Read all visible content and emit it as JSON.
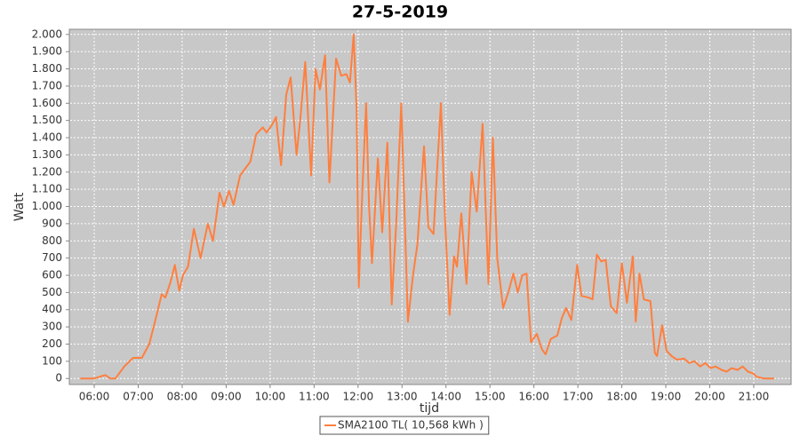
{
  "chart_data": {
    "type": "line",
    "title": "27-5-2019",
    "x_label": "tijd",
    "y_label": "Watt",
    "x": [
      "05:41",
      "06:00",
      "06:15",
      "06:22",
      "06:29",
      "06:41",
      "06:53",
      "07:05",
      "07:15",
      "07:24",
      "07:32",
      "07:37",
      "07:44",
      "07:50",
      "07:56",
      "08:01",
      "08:08",
      "08:16",
      "08:25",
      "08:35",
      "08:42",
      "08:51",
      "08:57",
      "09:04",
      "09:10",
      "09:19",
      "09:26",
      "09:33",
      "09:41",
      "09:50",
      "09:55",
      "10:02",
      "10:08",
      "10:15",
      "10:22",
      "10:28",
      "10:36",
      "10:41",
      "10:48",
      "10:56",
      "11:02",
      "11:08",
      "11:15",
      "11:21",
      "11:30",
      "11:37",
      "11:44",
      "11:49",
      "11:54",
      "11:58",
      "12:01",
      "12:06",
      "12:11",
      "12:15",
      "12:19",
      "12:27",
      "12:33",
      "12:40",
      "12:46",
      "12:52",
      "12:59",
      "13:08",
      "13:15",
      "13:21",
      "13:30",
      "13:36",
      "13:43",
      "13:53",
      "13:59",
      "14:05",
      "14:11",
      "14:15",
      "14:21",
      "14:28",
      "14:35",
      "14:42",
      "14:50",
      "14:58",
      "15:04",
      "15:10",
      "15:18",
      "15:25",
      "15:32",
      "15:38",
      "15:44",
      "15:50",
      "15:56",
      "16:04",
      "16:11",
      "16:16",
      "16:23",
      "16:32",
      "16:38",
      "16:44",
      "16:51",
      "16:59",
      "17:05",
      "17:15",
      "17:20",
      "17:26",
      "17:32",
      "17:38",
      "17:45",
      "17:53",
      "18:00",
      "18:07",
      "18:15",
      "18:19",
      "18:24",
      "18:30",
      "18:39",
      "18:45",
      "18:48",
      "18:55",
      "19:01",
      "19:08",
      "19:15",
      "19:25",
      "19:32",
      "19:39",
      "19:47",
      "19:54",
      "20:01",
      "20:08",
      "20:16",
      "20:23",
      "20:30",
      "20:38",
      "20:45",
      "20:52",
      "20:59",
      "21:04",
      "21:14",
      "21:28"
    ],
    "series": [
      {
        "name": "SMA2100 TL( 10,568 kWh )",
        "color": "#ff7f3f",
        "values": [
          0,
          0,
          20,
          0,
          0,
          70,
          120,
          120,
          200,
          350,
          490,
          470,
          560,
          660,
          510,
          600,
          650,
          870,
          700,
          900,
          800,
          1080,
          1000,
          1090,
          1010,
          1180,
          1220,
          1260,
          1420,
          1460,
          1430,
          1470,
          1520,
          1240,
          1650,
          1750,
          1300,
          1500,
          1840,
          1180,
          1800,
          1680,
          1880,
          1140,
          1860,
          1760,
          1770,
          1720,
          2000,
          1560,
          530,
          1100,
          1600,
          1000,
          670,
          1280,
          850,
          1370,
          430,
          900,
          1600,
          330,
          600,
          780,
          1350,
          880,
          840,
          1600,
          900,
          370,
          710,
          650,
          960,
          550,
          1200,
          970,
          1480,
          550,
          1400,
          700,
          410,
          500,
          610,
          500,
          600,
          610,
          210,
          260,
          170,
          140,
          230,
          250,
          350,
          410,
          340,
          660,
          480,
          470,
          460,
          720,
          680,
          690,
          420,
          380,
          670,
          440,
          710,
          330,
          610,
          460,
          450,
          150,
          130,
          310,
          160,
          130,
          110,
          115,
          90,
          100,
          70,
          90,
          60,
          70,
          50,
          40,
          60,
          50,
          70,
          40,
          30,
          10,
          0,
          0
        ]
      }
    ],
    "xlim": [
      "05:26",
      "21:51"
    ],
    "xticks": [
      "06:00",
      "07:00",
      "08:00",
      "09:00",
      "10:00",
      "11:00",
      "12:00",
      "13:00",
      "14:00",
      "15:00",
      "16:00",
      "17:00",
      "18:00",
      "19:00",
      "20:00",
      "21:00"
    ],
    "ylim": [
      -35,
      2030
    ],
    "yticks": [
      0,
      100,
      200,
      300,
      400,
      500,
      600,
      700,
      800,
      900,
      {
        "value": 1000,
        "label": "1.000"
      },
      {
        "value": 1100,
        "label": "1.100"
      },
      {
        "value": 1200,
        "label": "1.200"
      },
      {
        "value": 1300,
        "label": "1.300"
      },
      {
        "value": 1400,
        "label": "1.400"
      },
      {
        "value": 1500,
        "label": "1.500"
      },
      {
        "value": 1600,
        "label": "1.600"
      },
      {
        "value": 1700,
        "label": "1.700"
      },
      {
        "value": 1800,
        "label": "1.800"
      },
      {
        "value": 1900,
        "label": "1.900"
      },
      {
        "value": 2000,
        "label": "2.000"
      }
    ],
    "grid": true,
    "plot_background": "#c8c8c8"
  }
}
